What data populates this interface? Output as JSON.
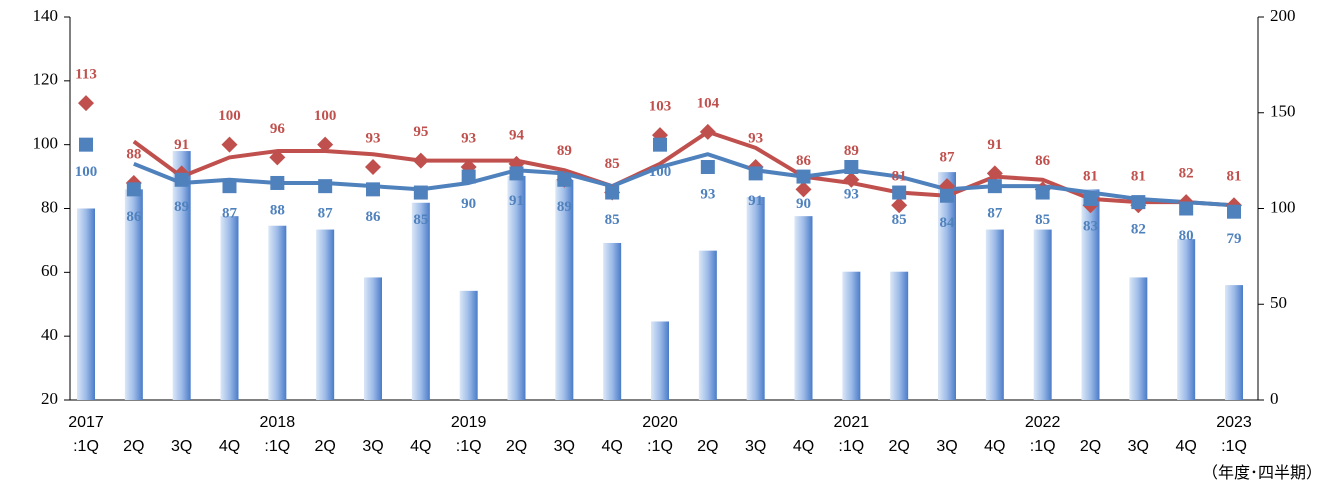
{
  "chart_data": {
    "type": "bar",
    "categories": [
      ":1Q",
      "2Q",
      "3Q",
      "4Q",
      ":1Q",
      "2Q",
      "3Q",
      "4Q",
      ":1Q",
      "2Q",
      "3Q",
      "4Q",
      ":1Q",
      "2Q",
      "3Q",
      "4Q",
      ":1Q",
      "2Q",
      "3Q",
      "4Q",
      ":1Q",
      "2Q",
      "3Q",
      "4Q",
      ":1Q"
    ],
    "category_years": [
      "2017",
      null,
      null,
      null,
      "2018",
      null,
      null,
      null,
      "2019",
      null,
      null,
      null,
      "2020",
      null,
      null,
      null,
      "2021",
      null,
      null,
      null,
      "2022",
      null,
      null,
      null,
      "2023"
    ],
    "footnote": "（年度･四半期）",
    "ylim": [
      20,
      140
    ],
    "yticks": [
      20,
      40,
      60,
      80,
      100,
      120,
      140
    ],
    "y2lim": [
      0,
      200
    ],
    "y2ticks": [
      0,
      50,
      100,
      150,
      200
    ],
    "series": [
      {
        "type": "bar",
        "axis": "y2",
        "color": "#5b8fd6",
        "values": [
          100,
          110,
          130,
          96,
          91,
          89,
          64,
          103,
          57,
          117,
          115,
          82,
          41,
          78,
          106,
          96,
          67,
          67,
          119,
          89,
          89,
          110,
          64,
          84,
          60
        ]
      },
      {
        "type": "line",
        "color": "#c0504d",
        "values": [
          null,
          101,
          90,
          96,
          98,
          98,
          97,
          95,
          95,
          95,
          92,
          87,
          94,
          104,
          99,
          90,
          88,
          85,
          84,
          90,
          89,
          83,
          82,
          82,
          81
        ]
      },
      {
        "type": "line",
        "color": "#4f81bd",
        "values": [
          null,
          94,
          88,
          89,
          88,
          88,
          87,
          86,
          88,
          92,
          91,
          87,
          93,
          97,
          92,
          90,
          92,
          90,
          86,
          87,
          87,
          85,
          83,
          82,
          81
        ]
      },
      {
        "type": "scatter",
        "marker": "diamond",
        "labels": "above",
        "color": "#c0504d",
        "values": [
          113,
          88,
          91,
          100,
          96,
          100,
          93,
          95,
          93,
          94,
          89,
          85,
          103,
          104,
          93,
          86,
          89,
          81,
          87,
          91,
          86,
          81,
          81,
          82,
          81
        ]
      },
      {
        "type": "scatter",
        "marker": "square",
        "labels": "below",
        "color": "#4f81bd",
        "values": [
          100,
          86,
          89,
          87,
          88,
          87,
          86,
          85,
          90,
          91,
          89,
          85,
          100,
          93,
          91,
          90,
          93,
          85,
          84,
          87,
          85,
          83,
          82,
          80,
          79
        ]
      }
    ]
  }
}
